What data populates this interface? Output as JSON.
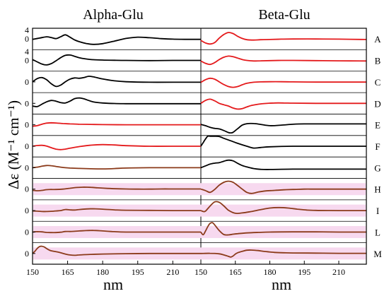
{
  "chart_data": {
    "type": "line",
    "columns": [
      {
        "title": "Alpha-Glu",
        "xlabel": "nm",
        "xlim": [
          150,
          222
        ],
        "xticks": [
          150,
          165,
          180,
          195,
          210
        ]
      },
      {
        "title": "Beta-Glu",
        "xlabel": "nm",
        "xlim": [
          150,
          222
        ],
        "xticks": [
          150,
          165,
          180,
          195,
          210
        ]
      }
    ],
    "ylabel": "Δε (M⁻¹ cm⁻¹)",
    "ytick_label": "0",
    "row_labels": [
      "A",
      "B",
      "C",
      "D",
      "E",
      "F",
      "G",
      "H",
      "I",
      "L",
      "M"
    ],
    "row_zero_label": [
      "0 4",
      "0 4",
      "0",
      "0",
      "0",
      "0",
      "0",
      "0",
      "0",
      "0",
      "0"
    ],
    "colors": {
      "black": "#000000",
      "red": "#e41a1c",
      "brown": "#8b3a1a",
      "band": "#f7d9ef"
    },
    "panels": [
      {
        "row": "A",
        "col": 0,
        "color": "black",
        "x": [
          150,
          153,
          156,
          158,
          160,
          162,
          164,
          166,
          168,
          170,
          173,
          176,
          180,
          185,
          190,
          195,
          200,
          205,
          210,
          215,
          222
        ],
        "y": [
          -0.2,
          0.5,
          1.2,
          0.8,
          0.2,
          1.2,
          2.3,
          1.0,
          -0.5,
          -1.5,
          -2.5,
          -3.0,
          -2.6,
          -1.2,
          0.3,
          1.0,
          0.7,
          0.2,
          -0.1,
          -0.2,
          -0.2
        ]
      },
      {
        "row": "A",
        "col": 1,
        "color": "red",
        "x": [
          150,
          152,
          154,
          156,
          158,
          160,
          162,
          164,
          166,
          168,
          170,
          173,
          176,
          180,
          185,
          190,
          200,
          210,
          222
        ],
        "y": [
          -0.8,
          -2.2,
          -2.8,
          -2.0,
          0.5,
          2.5,
          3.6,
          3.0,
          1.5,
          0.3,
          -0.4,
          -0.6,
          -0.4,
          -0.3,
          -0.1,
          0.0,
          0.0,
          -0.1,
          -0.3
        ]
      },
      {
        "row": "B",
        "col": 0,
        "color": "black",
        "x": [
          150,
          152,
          154,
          156,
          158,
          160,
          162,
          164,
          166,
          168,
          170,
          173,
          176,
          180,
          185,
          190,
          200,
          210,
          222
        ],
        "y": [
          0.5,
          -0.8,
          -2.0,
          -2.5,
          -1.8,
          -0.2,
          1.5,
          2.8,
          3.0,
          2.3,
          1.5,
          0.8,
          0.4,
          0.2,
          0.1,
          0.0,
          -0.1,
          0.0,
          0.0
        ]
      },
      {
        "row": "B",
        "col": 1,
        "color": "red",
        "x": [
          150,
          152,
          154,
          156,
          158,
          160,
          162,
          164,
          166,
          168,
          170,
          173,
          176,
          180,
          185,
          190,
          200,
          210,
          222
        ],
        "y": [
          -0.3,
          -1.6,
          -2.2,
          -1.2,
          0.5,
          1.8,
          2.4,
          2.1,
          1.3,
          0.5,
          0.0,
          -0.3,
          -0.2,
          -0.1,
          0.0,
          0.0,
          -0.1,
          -0.2,
          -0.3
        ]
      },
      {
        "row": "C",
        "col": 0,
        "color": "black",
        "x": [
          150,
          152,
          154,
          156,
          158,
          160,
          162,
          164,
          166,
          168,
          170,
          172,
          174,
          176,
          180,
          185,
          190,
          200,
          210,
          222
        ],
        "y": [
          0.0,
          1.8,
          2.4,
          1.2,
          -1.0,
          -2.5,
          -1.8,
          0.0,
          1.5,
          2.2,
          2.0,
          2.4,
          3.1,
          2.8,
          1.6,
          0.6,
          0.1,
          -0.2,
          -0.2,
          -0.2
        ]
      },
      {
        "row": "C",
        "col": 1,
        "color": "red",
        "x": [
          150,
          152,
          154,
          156,
          158,
          160,
          162,
          164,
          166,
          168,
          170,
          173,
          176,
          180,
          185,
          190,
          200,
          210,
          222
        ],
        "y": [
          -0.3,
          1.2,
          2.0,
          1.5,
          0.0,
          -1.5,
          -2.6,
          -3.0,
          -2.6,
          -1.6,
          -0.8,
          -0.2,
          0.0,
          0.1,
          0.1,
          0.0,
          -0.1,
          -0.1,
          -0.1
        ]
      },
      {
        "row": "D",
        "col": 0,
        "color": "black",
        "x": [
          150,
          152,
          154,
          156,
          158,
          160,
          162,
          164,
          166,
          168,
          170,
          172,
          174,
          176,
          180,
          185,
          190,
          200,
          210,
          222
        ],
        "y": [
          -1.5,
          -1.8,
          -0.5,
          0.8,
          1.6,
          1.2,
          0.4,
          0.2,
          1.2,
          2.6,
          3.0,
          2.5,
          1.6,
          0.8,
          0.2,
          -0.1,
          -0.2,
          -0.2,
          -0.2,
          -0.2
        ]
      },
      {
        "row": "D",
        "col": 1,
        "color": "red",
        "x": [
          150,
          152,
          154,
          156,
          158,
          160,
          162,
          164,
          166,
          168,
          170,
          172,
          175,
          178,
          182,
          186,
          190,
          200,
          210,
          222
        ],
        "y": [
          0.0,
          1.6,
          2.3,
          1.4,
          0.0,
          -0.8,
          -1.5,
          -2.6,
          -3.2,
          -2.9,
          -2.0,
          -1.2,
          -0.5,
          -0.1,
          0.2,
          0.2,
          0.1,
          0.0,
          0.0,
          0.0
        ]
      },
      {
        "row": "E",
        "col": 0,
        "color": "red",
        "x": [
          150,
          152,
          154,
          156,
          158,
          160,
          163,
          166,
          170,
          175,
          180,
          190,
          200,
          210,
          222
        ],
        "y": [
          -0.8,
          -0.5,
          0.3,
          0.9,
          1.1,
          1.0,
          0.7,
          0.5,
          0.3,
          0.2,
          0.1,
          0.0,
          0.0,
          0.0,
          0.0
        ]
      },
      {
        "row": "E",
        "col": 1,
        "color": "black",
        "x": [
          150,
          152,
          154,
          156,
          158,
          160,
          162,
          163,
          164,
          166,
          168,
          170,
          173,
          176,
          180,
          185,
          190,
          195,
          200,
          210,
          222
        ],
        "y": [
          0.2,
          -0.5,
          -1.4,
          -2.0,
          -2.3,
          -3.2,
          -4.3,
          -4.5,
          -4.2,
          -2.2,
          -0.2,
          0.6,
          0.7,
          0.2,
          -0.5,
          -0.2,
          0.3,
          0.5,
          0.5,
          0.5,
          0.5
        ]
      },
      {
        "row": "F",
        "col": 0,
        "color": "red",
        "x": [
          150,
          152,
          154,
          156,
          158,
          160,
          162,
          164,
          166,
          170,
          175,
          180,
          185,
          190,
          200,
          210,
          222
        ],
        "y": [
          0.0,
          0.4,
          0.5,
          0.1,
          -0.8,
          -1.6,
          -1.9,
          -1.6,
          -1.1,
          -0.2,
          0.6,
          0.9,
          0.7,
          0.3,
          0.0,
          0.0,
          0.0
        ]
      },
      {
        "row": "F",
        "col": 1,
        "color": "black",
        "x": [
          150,
          151,
          152,
          153,
          154,
          155,
          156,
          158,
          160,
          163,
          166,
          170,
          173,
          176,
          180,
          190,
          200,
          210,
          222
        ],
        "y": [
          0.0,
          2.0,
          4.0,
          5.8,
          6.8,
          7.0,
          6.6,
          5.4,
          4.4,
          3.0,
          1.6,
          0.0,
          -1.0,
          -0.7,
          -0.3,
          0.0,
          0.0,
          0.0,
          0.0
        ]
      },
      {
        "row": "G",
        "col": 0,
        "color": "brown",
        "x": [
          150,
          152,
          154,
          156,
          158,
          160,
          162,
          164,
          166,
          170,
          175,
          180,
          185,
          190,
          200,
          210,
          222
        ],
        "y": [
          0.0,
          0.3,
          0.8,
          1.2,
          1.1,
          0.7,
          0.3,
          0.0,
          -0.2,
          -0.4,
          -0.6,
          -0.7,
          -0.5,
          -0.2,
          0.0,
          0.0,
          0.0
        ]
      },
      {
        "row": "G",
        "col": 1,
        "color": "black",
        "x": [
          150,
          152,
          154,
          156,
          158,
          160,
          162,
          164,
          166,
          168,
          170,
          173,
          176,
          180,
          190,
          200,
          210,
          222
        ],
        "y": [
          0.0,
          1.0,
          2.0,
          2.5,
          2.8,
          3.6,
          4.2,
          3.8,
          2.4,
          1.2,
          0.4,
          -0.5,
          -0.9,
          -1.0,
          -0.8,
          -0.8,
          -0.8,
          -0.8
        ]
      },
      {
        "row": "H",
        "col": 0,
        "color": "brown",
        "x": [
          150,
          152,
          154,
          156,
          158,
          160,
          163,
          166,
          169,
          172,
          175,
          178,
          182,
          186,
          190,
          195,
          200,
          205,
          210,
          215,
          222
        ],
        "y": [
          -0.6,
          -0.9,
          -0.7,
          -0.3,
          -0.2,
          -0.2,
          0.0,
          0.5,
          0.9,
          1.1,
          1.0,
          0.7,
          0.4,
          0.2,
          0.1,
          0.0,
          0.0,
          0.1,
          0.1,
          0.1,
          0.1
        ]
      },
      {
        "row": "H",
        "col": 1,
        "color": "brown",
        "x": [
          150,
          152,
          154,
          156,
          158,
          160,
          162,
          164,
          166,
          168,
          170,
          172,
          175,
          178,
          182,
          186,
          190,
          195,
          200,
          210,
          222
        ],
        "y": [
          0.0,
          -0.8,
          -1.8,
          -0.2,
          2.2,
          3.8,
          4.4,
          3.8,
          2.0,
          0.0,
          -1.8,
          -2.4,
          -1.6,
          -1.0,
          -0.7,
          -0.4,
          -0.2,
          0.0,
          0.0,
          0.0,
          0.0
        ]
      },
      {
        "row": "I",
        "col": 0,
        "color": "brown",
        "x": [
          150,
          152,
          154,
          156,
          158,
          160,
          162,
          164,
          166,
          168,
          170,
          173,
          176,
          180,
          185,
          190,
          200,
          210,
          222
        ],
        "y": [
          -0.2,
          -0.3,
          -0.5,
          -0.5,
          -0.4,
          -0.2,
          0.0,
          0.6,
          0.4,
          0.3,
          0.6,
          0.9,
          1.0,
          0.8,
          0.4,
          0.2,
          0.1,
          0.0,
          0.0
        ]
      },
      {
        "row": "I",
        "col": 1,
        "color": "brown",
        "x": [
          150,
          151,
          152,
          154,
          156,
          158,
          160,
          162,
          165,
          168,
          172,
          176,
          180,
          184,
          188,
          192,
          196,
          200,
          210,
          222
        ],
        "y": [
          0.0,
          -0.5,
          -0.3,
          2.5,
          4.8,
          4.6,
          2.6,
          0.2,
          -1.5,
          -1.3,
          -0.5,
          0.5,
          1.4,
          1.7,
          1.4,
          0.8,
          0.3,
          0.1,
          0.0,
          0.0
        ]
      },
      {
        "row": "L",
        "col": 0,
        "color": "brown",
        "x": [
          150,
          152,
          154,
          156,
          158,
          160,
          162,
          164,
          166,
          168,
          170,
          173,
          176,
          180,
          185,
          190,
          200,
          210,
          222
        ],
        "y": [
          0.0,
          0.2,
          0.1,
          -0.2,
          -0.3,
          -0.3,
          -0.1,
          0.3,
          0.3,
          0.4,
          0.6,
          0.8,
          0.9,
          0.6,
          0.2,
          0.0,
          0.0,
          0.0,
          0.0
        ]
      },
      {
        "row": "L",
        "col": 1,
        "color": "brown",
        "x": [
          150,
          151,
          152,
          153,
          154,
          155,
          156,
          158,
          160,
          162,
          164,
          166,
          170,
          175,
          180,
          190,
          200,
          210,
          222
        ],
        "y": [
          0.0,
          -1.5,
          0.5,
          3.0,
          4.8,
          5.2,
          4.0,
          0.8,
          -1.4,
          -1.6,
          -1.2,
          -0.9,
          -0.5,
          -0.2,
          0.0,
          0.1,
          0.1,
          0.0,
          0.0
        ]
      },
      {
        "row": "M",
        "col": 0,
        "color": "brown",
        "x": [
          150,
          151,
          152,
          153,
          154,
          155,
          156,
          157,
          158,
          160,
          162,
          164,
          166,
          168,
          170,
          175,
          180,
          190,
          200,
          210,
          222
        ],
        "y": [
          0.0,
          1.2,
          2.8,
          3.8,
          4.0,
          3.6,
          2.8,
          2.0,
          1.5,
          1.0,
          0.4,
          -0.3,
          -0.8,
          -1.0,
          -0.8,
          -0.5,
          -0.3,
          -0.1,
          0.0,
          0.0,
          0.0
        ]
      },
      {
        "row": "M",
        "col": 1,
        "color": "brown",
        "x": [
          150,
          154,
          158,
          160,
          162,
          163,
          164,
          165,
          166,
          168,
          170,
          172,
          175,
          178,
          182,
          186,
          190,
          200,
          210,
          222
        ],
        "y": [
          0.0,
          0.1,
          -0.2,
          -0.8,
          -1.6,
          -2.0,
          -1.4,
          -0.3,
          0.4,
          1.2,
          1.8,
          1.9,
          1.6,
          1.1,
          0.6,
          0.4,
          0.3,
          0.2,
          0.1,
          0.1
        ]
      }
    ]
  }
}
